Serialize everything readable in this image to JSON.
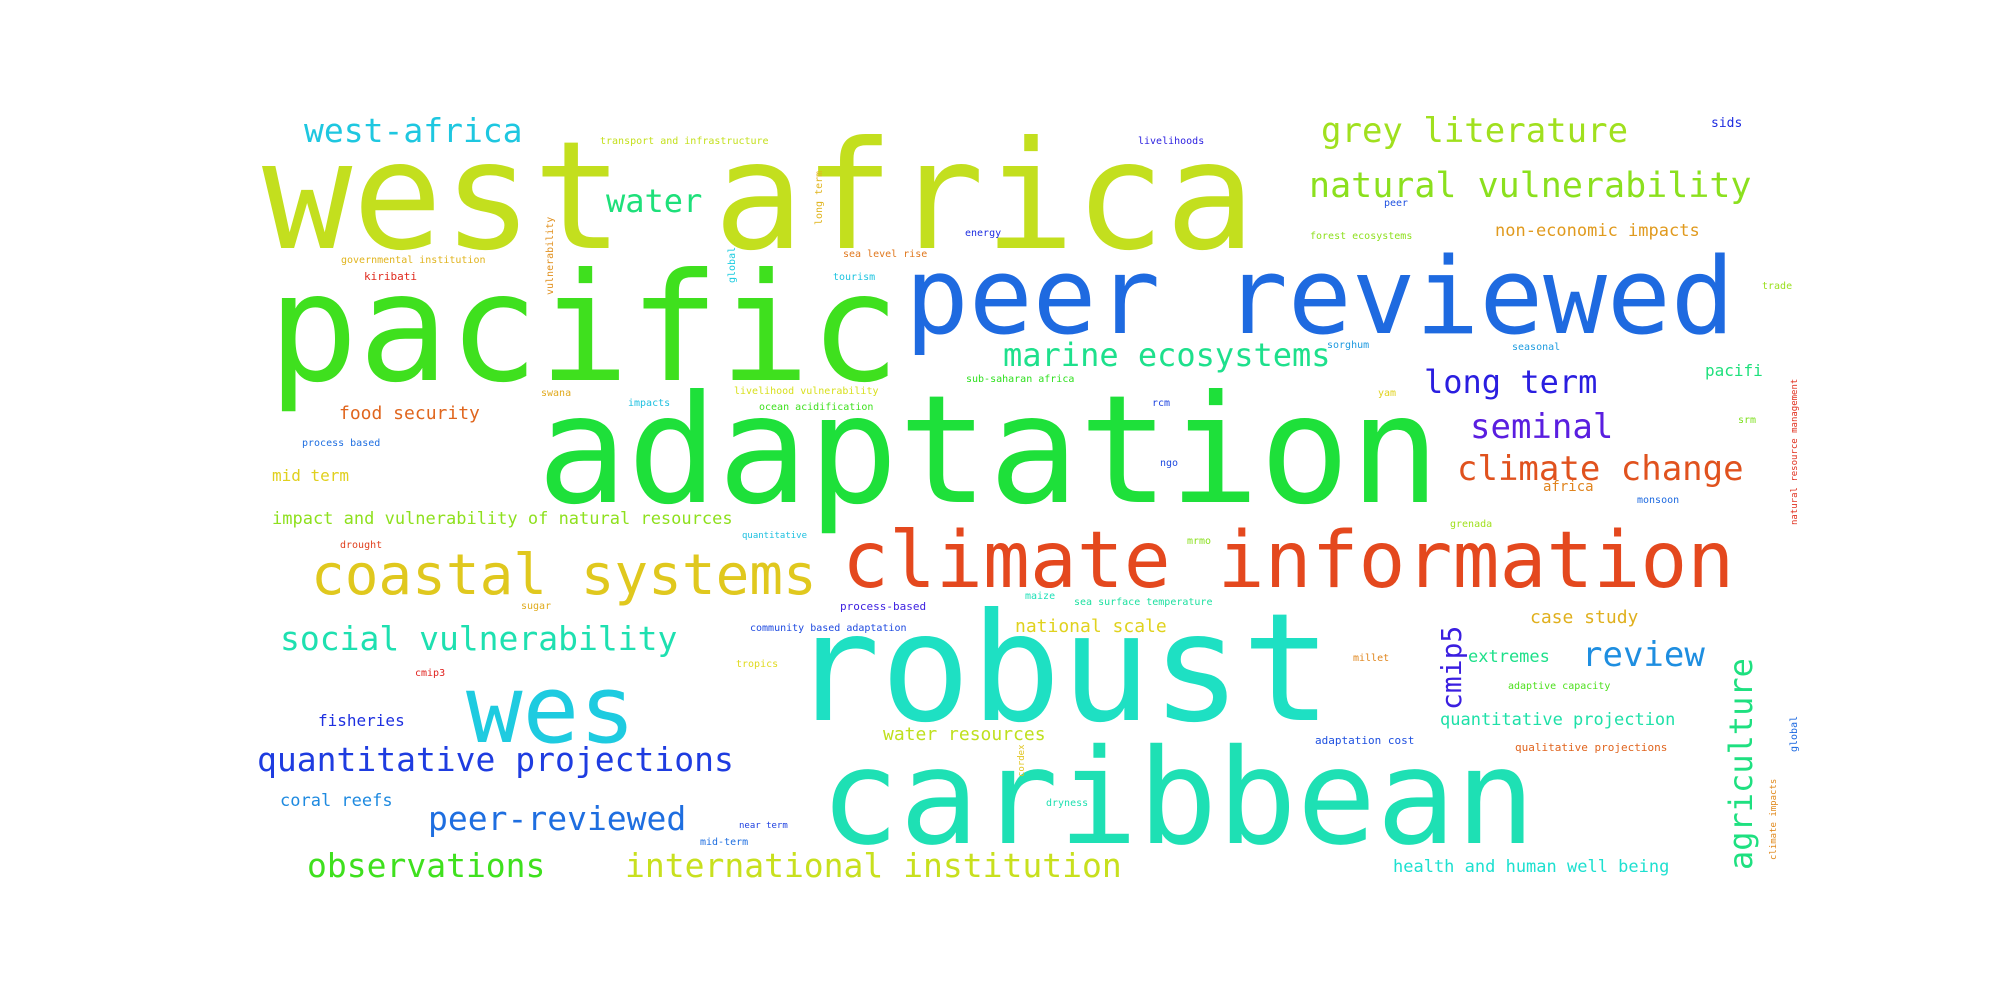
{
  "word_cloud": {
    "words": [
      {
        "text": "west africa",
        "color": "#c3df1e"
      },
      {
        "text": "pacific",
        "color": "#3fe01e"
      },
      {
        "text": "peer reviewed",
        "color": "#1e6ae0"
      },
      {
        "text": "adaptation",
        "color": "#1ee03a"
      },
      {
        "text": "climate information",
        "color": "#e4481e"
      },
      {
        "text": "robust",
        "color": "#1ee0c3"
      },
      {
        "text": "caribbean",
        "color": "#1ee0b4"
      },
      {
        "text": "wes",
        "color": "#1ecbe0"
      },
      {
        "text": "coastal systems",
        "color": "#e0c81e"
      },
      {
        "text": "marine ecosystems",
        "color": "#1ee08c"
      },
      {
        "text": "grey literature",
        "color": "#a0e01e"
      },
      {
        "text": "natural vulnerability",
        "color": "#8be01e"
      },
      {
        "text": "west-africa",
        "color": "#1ec7e0"
      },
      {
        "text": "water",
        "color": "#1ee07a"
      },
      {
        "text": "long term",
        "color": "#2a1ee0"
      },
      {
        "text": "seminal",
        "color": "#5a1ee0"
      },
      {
        "text": "climate change",
        "color": "#e0521e"
      },
      {
        "text": "social vulnerability",
        "color": "#1ee0b0"
      },
      {
        "text": "quantitative projections",
        "color": "#1e3ce0"
      },
      {
        "text": "peer-reviewed",
        "color": "#1e6ee0"
      },
      {
        "text": "observations",
        "color": "#3fe01e"
      },
      {
        "text": "international institution",
        "color": "#c8e01e"
      },
      {
        "text": "review",
        "color": "#1e8ee0"
      },
      {
        "text": "agriculture",
        "color": "#1ee080"
      },
      {
        "text": "cmip5",
        "color": "#3a1ee0"
      },
      {
        "text": "food security",
        "color": "#e0661e"
      },
      {
        "text": "impact and vulnerability of natural resources",
        "color": "#8ee01e"
      },
      {
        "text": "case study",
        "color": "#e0b01e"
      },
      {
        "text": "national scale",
        "color": "#e0d21e"
      },
      {
        "text": "extremes",
        "color": "#1ee08a"
      },
      {
        "text": "quantitative projection",
        "color": "#1ee0a8"
      },
      {
        "text": "water resources",
        "color": "#bfe01e"
      },
      {
        "text": "health and human well being",
        "color": "#1ee0d0"
      },
      {
        "text": "coral reefs",
        "color": "#1e8ae0"
      },
      {
        "text": "fisheries",
        "color": "#1e30e0"
      },
      {
        "text": "mid term",
        "color": "#e0d01e"
      },
      {
        "text": "non-economic impacts",
        "color": "#e09a1e"
      },
      {
        "text": "community based adaptation",
        "color": "#1e4ae0"
      },
      {
        "text": "process-based",
        "color": "#3a1ee0"
      },
      {
        "text": "sea surface temperature",
        "color": "#1ee0a0"
      },
      {
        "text": "adaptive capacity",
        "color": "#4ee01e"
      },
      {
        "text": "qualitative projections",
        "color": "#e0641e"
      },
      {
        "text": "adaptation cost",
        "color": "#1e50e0"
      },
      {
        "text": "transport and infrastructure",
        "color": "#c4e01e"
      },
      {
        "text": "livelihoods",
        "color": "#2a1ee0"
      },
      {
        "text": "sids",
        "color": "#1e2ce0"
      },
      {
        "text": "governmental institution",
        "color": "#e0b41e"
      },
      {
        "text": "kiribati",
        "color": "#e02a1e"
      },
      {
        "text": "sea level rise",
        "color": "#e0781e"
      },
      {
        "text": "tourism",
        "color": "#1ec4e0"
      },
      {
        "text": "energy",
        "color": "#1e2ee0"
      },
      {
        "text": "forest ecosystems",
        "color": "#8ee01e"
      },
      {
        "text": "livelihood vulnerability",
        "color": "#d8e01e"
      },
      {
        "text": "ocean acidification",
        "color": "#3ee01e"
      },
      {
        "text": "sub-saharan africa",
        "color": "#2ee01e"
      },
      {
        "text": "process based",
        "color": "#1e6ee0"
      },
      {
        "text": "sorghum",
        "color": "#1e9ae0"
      },
      {
        "text": "seasonal",
        "color": "#1e9ce0"
      },
      {
        "text": "pacifi",
        "color": "#1ee07c"
      },
      {
        "text": "africa",
        "color": "#e0841e"
      },
      {
        "text": "drought",
        "color": "#e0401e"
      },
      {
        "text": "quantitative",
        "color": "#1ec0e0"
      },
      {
        "text": "grenada",
        "color": "#a0e01e"
      },
      {
        "text": "monsoon",
        "color": "#1e6ae0"
      },
      {
        "text": "sugar",
        "color": "#e0ac1e"
      },
      {
        "text": "cmip3",
        "color": "#e0221e"
      },
      {
        "text": "tropics",
        "color": "#e0da1e"
      },
      {
        "text": "millet",
        "color": "#e0861e"
      },
      {
        "text": "dryness",
        "color": "#1ee0b0"
      },
      {
        "text": "near term",
        "color": "#1e40e0"
      },
      {
        "text": "mid-term",
        "color": "#1e6ee0"
      },
      {
        "text": "global",
        "color": "#1e6ae0"
      },
      {
        "text": "climate impacts",
        "color": "#e08a1e"
      },
      {
        "text": "trade",
        "color": "#9ae01e"
      },
      {
        "text": "natural resource management",
        "color": "#e0301e"
      },
      {
        "text": "impacts",
        "color": "#1ec0e0"
      },
      {
        "text": "maize",
        "color": "#1ee0b8"
      },
      {
        "text": "ngo",
        "color": "#1e4ae0"
      },
      {
        "text": "rcm",
        "color": "#1e44e0"
      },
      {
        "text": "srm",
        "color": "#7ee01e"
      },
      {
        "text": "yam",
        "color": "#e0d21e"
      },
      {
        "text": "peer",
        "color": "#1e50e0"
      },
      {
        "text": "mrmo",
        "color": "#8ae01e"
      },
      {
        "text": "vulnerability",
        "color": "#e0901e"
      },
      {
        "text": "long term",
        "color": "#e0b41e"
      },
      {
        "text": "global",
        "color": "#1ecce0"
      },
      {
        "text": "cordex",
        "color": "#e0c41e"
      },
      {
        "text": "swana",
        "color": "#e0aa1e"
      }
    ]
  }
}
